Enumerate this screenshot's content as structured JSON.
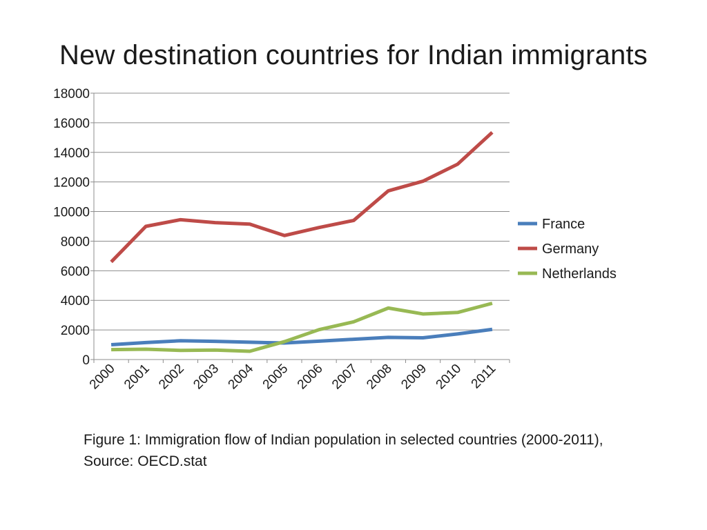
{
  "slide": {
    "title": "New destination countries for Indian immigrants",
    "caption": "Figure 1: Immigration flow of Indian population in selected countries (2000-2011), Source: OECD.stat"
  },
  "chart_data": {
    "type": "line",
    "title": "",
    "xlabel": "",
    "ylabel": "",
    "categories": [
      "2000",
      "2001",
      "2002",
      "2003",
      "2004",
      "2005",
      "2006",
      "2007",
      "2008",
      "2009",
      "2010",
      "2011"
    ],
    "ylim": [
      0,
      18000
    ],
    "yticks": [
      0,
      2000,
      4000,
      6000,
      8000,
      10000,
      12000,
      14000,
      16000,
      18000
    ],
    "grid": true,
    "legend_position": "right",
    "series": [
      {
        "name": "France",
        "color": "#4a7ebb",
        "values": [
          1000,
          1150,
          1270,
          1230,
          1170,
          1120,
          1240,
          1370,
          1500,
          1470,
          1730,
          2040
        ]
      },
      {
        "name": "Germany",
        "color": "#be4b48",
        "values": [
          6600,
          9000,
          9450,
          9250,
          9150,
          8380,
          8920,
          9400,
          11400,
          12050,
          13200,
          15350
        ]
      },
      {
        "name": "Netherlands",
        "color": "#98b954",
        "values": [
          670,
          700,
          620,
          640,
          560,
          1210,
          2020,
          2550,
          3480,
          3080,
          3180,
          3800
        ]
      }
    ]
  }
}
